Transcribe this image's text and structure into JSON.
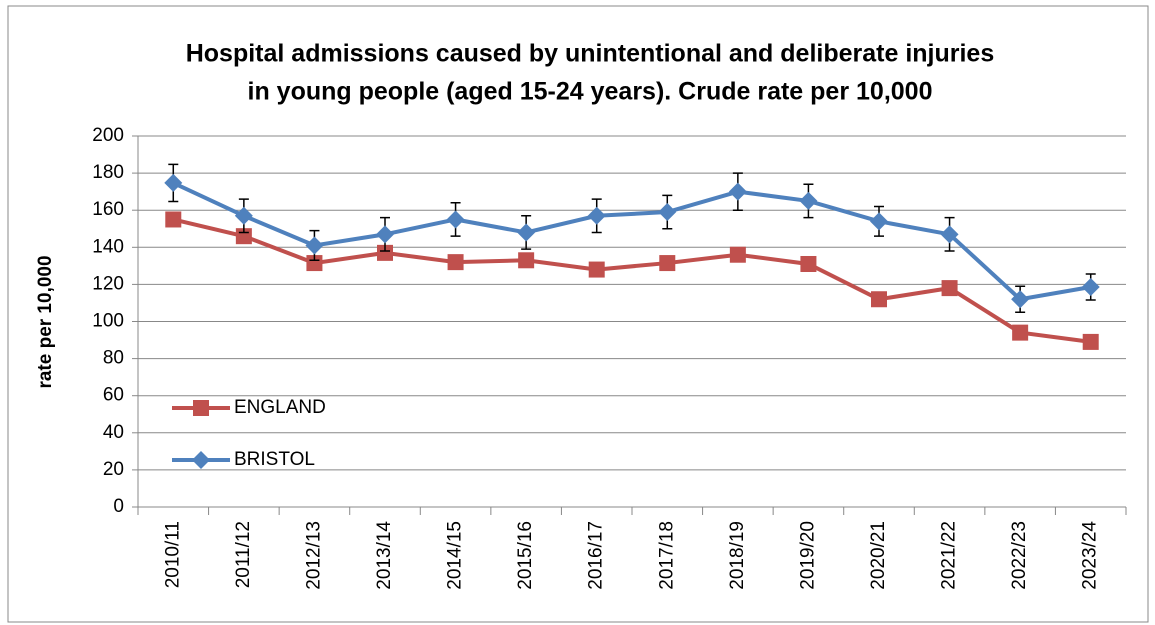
{
  "chart_data": {
    "type": "line",
    "title": [
      "Hospital admissions caused by unintentional and deliberate injuries",
      "in young people (aged 15-24 years). Crude rate per 10,000"
    ],
    "y_label": "rate per 10,000",
    "categories": [
      "2010/11",
      "2011/12",
      "2012/13",
      "2013/14",
      "2014/15",
      "2015/16",
      "2016/17",
      "2017/18",
      "2018/19",
      "2019/20",
      "2020/21",
      "2021/22",
      "2022/23",
      "2023/24"
    ],
    "series": [
      {
        "name": "ENGLAND",
        "color": "#c0504d",
        "marker": "square",
        "values": [
          155,
          146,
          131.5,
          137,
          132,
          133,
          128,
          131.5,
          136,
          131,
          112,
          118,
          94,
          89
        ]
      },
      {
        "name": "BRISTOL",
        "color": "#4f81bd",
        "marker": "diamond",
        "values": [
          174.7,
          157,
          141,
          147,
          155,
          148,
          157,
          159,
          170,
          165,
          154,
          147,
          112,
          118.6
        ],
        "errors": [
          10,
          9,
          8,
          9,
          9,
          9,
          9,
          9,
          10,
          9,
          8,
          9,
          7,
          7
        ]
      }
    ],
    "ylim": [
      0,
      200
    ],
    "yticks": [
      0,
      20,
      40,
      60,
      80,
      100,
      120,
      140,
      160,
      180,
      200
    ],
    "grid": true,
    "legend": "lower left"
  }
}
